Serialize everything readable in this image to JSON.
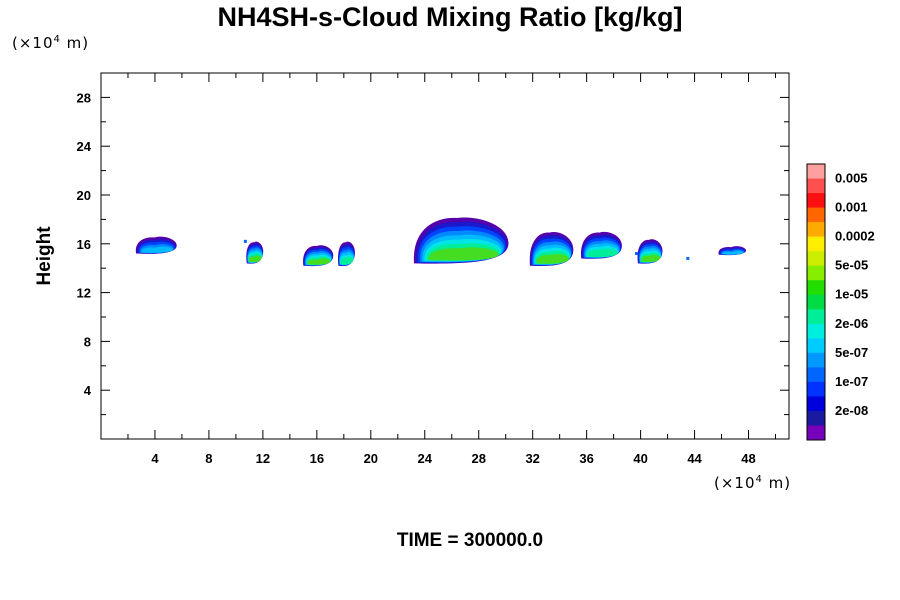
{
  "chart_data": {
    "type": "heatmap",
    "title": "NH4SH-s-Cloud Mixing Ratio [kg/kg]",
    "ylabel": "Height",
    "xlabel": "",
    "y_unit": "(×10⁴ m)",
    "x_unit": "(×10⁴ m)",
    "x_unit_base": "(×10",
    "x_unit_exp": "4",
    "x_unit_tail": " m)",
    "xlim": [
      0,
      51
    ],
    "ylim": [
      0,
      30
    ],
    "x_ticks": [
      "4",
      "8",
      "12",
      "16",
      "20",
      "24",
      "28",
      "32",
      "36",
      "40",
      "44",
      "48"
    ],
    "y_ticks": [
      "4",
      "8",
      "12",
      "16",
      "20",
      "24",
      "28"
    ],
    "colorbar": {
      "labels": [
        "0.005",
        "0.001",
        "0.0002",
        "5e-05",
        "1e-05",
        "2e-06",
        "5e-07",
        "1e-07",
        "2e-08"
      ],
      "colors": [
        "#ffa0a0",
        "#ff5050",
        "#ff1010",
        "#ff6600",
        "#ffaa00",
        "#ffee00",
        "#ccee00",
        "#88ee00",
        "#22dd00",
        "#00dd44",
        "#00ee99",
        "#00eedd",
        "#00ccff",
        "#0099ff",
        "#0066ff",
        "#0033ff",
        "#0000dd",
        "#1a1aa0",
        "#7700bb"
      ]
    },
    "cloud_cells": [
      {
        "x": [
          2.6,
          5.6
        ],
        "z": [
          15.2,
          16.6
        ],
        "peak": "5e-07"
      },
      {
        "x": [
          10.8,
          12.0
        ],
        "z": [
          14.4,
          16.2
        ],
        "peak": "5e-05"
      },
      {
        "x": [
          15.0,
          17.2
        ],
        "z": [
          14.2,
          15.9
        ],
        "peak": "5e-05"
      },
      {
        "x": [
          17.6,
          18.8
        ],
        "z": [
          14.2,
          16.2
        ],
        "peak": "1e-05"
      },
      {
        "x": [
          23.2,
          30.2
        ],
        "z": [
          14.4,
          18.2
        ],
        "peak": "5e-05"
      },
      {
        "x": [
          31.8,
          35.0
        ],
        "z": [
          14.2,
          17.0
        ],
        "peak": "5e-05"
      },
      {
        "x": [
          35.6,
          38.6
        ],
        "z": [
          14.8,
          17.0
        ],
        "peak": "1e-05"
      },
      {
        "x": [
          39.8,
          41.6
        ],
        "z": [
          14.4,
          16.4
        ],
        "peak": "5e-05"
      },
      {
        "x": [
          45.8,
          47.8
        ],
        "z": [
          15.1,
          15.8
        ],
        "peak": "5e-07"
      }
    ]
  },
  "time_label": "TIME = 300000.0"
}
